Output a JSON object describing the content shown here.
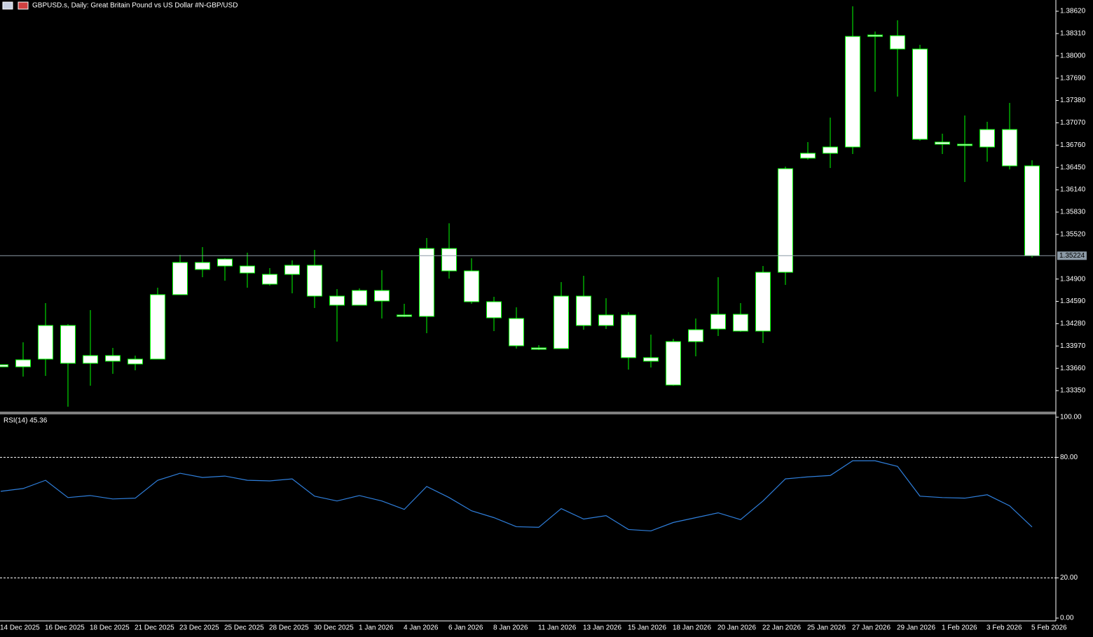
{
  "header": {
    "title": "GBPUSD.s, Daily:  Great Britain Pound vs US Dollar #N-GBP/USD"
  },
  "chart_data": [
    {
      "type": "candlestick",
      "categories": [
        "14 Dec 2025",
        null,
        "16 Dec 2025",
        null,
        "18 Dec 2025",
        null,
        "21 Dec 2025",
        null,
        "23 Dec 2025",
        null,
        "25 Dec 2025",
        null,
        "28 Dec 2025",
        null,
        "30 Dec 2025",
        null,
        "1 Jan 2026",
        null,
        "4 Jan 2026",
        null,
        "6 Jan 2026",
        null,
        "8 Jan 2026",
        null,
        "11 Jan 2026",
        null,
        "13 Jan 2026",
        null,
        "15 Jan 2026",
        null,
        "18 Jan 2026",
        null,
        "20 Jan 2026",
        null,
        "22 Jan 2026",
        null,
        "25 Jan 2026",
        null,
        "27 Jan 2026",
        null,
        "29 Jan 2026",
        null,
        "1 Feb 2026",
        null,
        "3 Feb 2026",
        null,
        "5 Feb 2026"
      ],
      "open": [
        1.33681,
        1.33681,
        1.33788,
        1.34255,
        1.3373,
        1.33837,
        1.3372,
        1.33788,
        1.34683,
        1.3513,
        1.35081,
        1.35081,
        1.34965,
        1.34965,
        1.35091,
        1.34663,
        1.34537,
        1.34741,
        1.34401,
        1.34381,
        1.35324,
        1.35013,
        1.34585,
        1.34352,
        1.33944,
        1.33934,
        1.34663,
        1.34255,
        1.34401,
        1.33808,
        1.33428,
        1.34031,
        1.34206,
        1.3441,
        1.34177,
        1.34994,
        1.36579,
        1.36647,
        1.36734,
        1.3827,
        1.3828,
        1.38095,
        1.36802,
        1.36773,
        1.36734,
        1.36977,
        1.36472
      ],
      "high": [
        1.3371,
        1.34021,
        1.34566,
        1.34274,
        1.34469,
        1.33944,
        1.33837,
        1.3478,
        1.35237,
        1.35344,
        1.35188,
        1.35266,
        1.35052,
        1.35159,
        1.35305,
        1.3476,
        1.3477,
        1.35023,
        1.34556,
        1.3547,
        1.35674,
        1.35188,
        1.34653,
        1.34508,
        1.33983,
        1.34858,
        1.34945,
        1.34634,
        1.3444,
        1.34128,
        1.3407,
        1.34352,
        1.34926,
        1.34566,
        1.35081,
        1.36462,
        1.36802,
        1.37143,
        1.38688,
        1.38338,
        1.38494,
        1.38154,
        1.36919,
        1.37172,
        1.37084,
        1.37347,
        1.36549
      ],
      "low": [
        1.33681,
        1.33545,
        1.33555,
        1.33127,
        1.33419,
        1.33584,
        1.33633,
        1.33788,
        1.34683,
        1.34926,
        1.34877,
        1.3478,
        1.34809,
        1.34702,
        1.34498,
        1.34031,
        1.34537,
        1.34352,
        1.34372,
        1.34148,
        1.34906,
        1.34556,
        1.34177,
        1.33934,
        1.33914,
        1.33934,
        1.34196,
        1.34206,
        1.33642,
        1.33671,
        1.33419,
        1.33827,
        1.34109,
        1.34167,
        1.34012,
        1.34819,
        1.36559,
        1.36442,
        1.36637,
        1.37502,
        1.37434,
        1.36822,
        1.36637,
        1.36248,
        1.3653,
        1.36423,
        1.35198
      ],
      "close": [
        1.3371,
        1.33778,
        1.34255,
        1.3373,
        1.33837,
        1.33759,
        1.33788,
        1.34683,
        1.3513,
        1.35033,
        1.35178,
        1.34984,
        1.34829,
        1.35091,
        1.34663,
        1.34537,
        1.34741,
        1.34595,
        1.34381,
        1.35324,
        1.35013,
        1.34585,
        1.34362,
        1.33973,
        1.33924,
        1.34663,
        1.34255,
        1.34401,
        1.33808,
        1.33759,
        1.34031,
        1.34196,
        1.3441,
        1.34177,
        1.34994,
        1.36433,
        1.36647,
        1.36734,
        1.3827,
        1.3829,
        1.38095,
        1.36841,
        1.36773,
        1.36754,
        1.36977,
        1.36472,
        1.35224
      ],
      "color": "#00ff00",
      "body_color": "#ffffff",
      "current_price": 1.35224,
      "current_price_color": "#8c9aa6",
      "ylim": [
        1.33049,
        1.38776
      ],
      "yticks": [
        {
          "value": 1.3862,
          "label": "1.38620"
        },
        {
          "value": 1.3831,
          "label": "1.38310"
        },
        {
          "value": 1.38,
          "label": "1.38000"
        },
        {
          "value": 1.3769,
          "label": "1.37690"
        },
        {
          "value": 1.3738,
          "label": "1.37380"
        },
        {
          "value": 1.3707,
          "label": "1.37070"
        },
        {
          "value": 1.3676,
          "label": "1.36760"
        },
        {
          "value": 1.3645,
          "label": "1.36450"
        },
        {
          "value": 1.3614,
          "label": "1.36140"
        },
        {
          "value": 1.3583,
          "label": "1.35830"
        },
        {
          "value": 1.3552,
          "label": "1.35520"
        },
        {
          "value": 1.349,
          "label": "1.34900"
        },
        {
          "value": 1.3459,
          "label": "1.34590"
        },
        {
          "value": 1.3428,
          "label": "1.34280"
        },
        {
          "value": 1.3397,
          "label": "1.33970"
        },
        {
          "value": 1.3366,
          "label": "1.33660"
        },
        {
          "value": 1.3335,
          "label": "1.33350"
        }
      ]
    },
    {
      "type": "line",
      "label": "RSI(14) 45.36",
      "series": [
        {
          "name": "RSI(14)",
          "color": "#2f7fdc",
          "values": [
            63.1,
            64.5,
            68.6,
            60.0,
            61.0,
            59.3,
            59.7,
            68.6,
            72.1,
            70.0,
            70.7,
            68.6,
            68.3,
            69.3,
            60.7,
            58.3,
            61.0,
            58.3,
            54.1,
            65.5,
            60.0,
            53.4,
            50.0,
            45.5,
            45.2,
            54.5,
            49.3,
            51.0,
            44.1,
            43.4,
            47.6,
            50.0,
            52.4,
            49.0,
            58.3,
            69.3,
            70.3,
            71.0,
            78.3,
            78.3,
            75.5,
            60.7,
            60.0,
            59.7,
            61.4,
            55.9,
            45.36
          ]
        }
      ],
      "levels": [
        80,
        20
      ],
      "ylim": [
        0,
        100
      ],
      "yticks": [
        {
          "value": 100,
          "label": "100.00"
        },
        {
          "value": 80,
          "label": "80.00"
        },
        {
          "value": 20,
          "label": "20.00"
        },
        {
          "value": 0,
          "label": "0.00"
        }
      ]
    }
  ]
}
